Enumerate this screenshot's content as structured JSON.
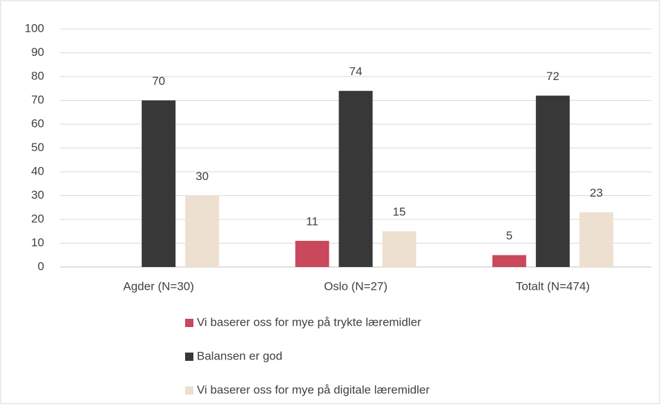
{
  "chart_data": {
    "type": "bar",
    "categories": [
      "Agder (N=30)",
      "Oslo (N=27)",
      "Totalt (N=474)"
    ],
    "series": [
      {
        "name": "Vi baserer oss for mye på trykte læremidler",
        "color": "#c9485b",
        "values": [
          null,
          11,
          5
        ]
      },
      {
        "name": "Balansen er god",
        "color": "#383838",
        "values": [
          70,
          74,
          72
        ]
      },
      {
        "name": "Vi baserer oss for mye på digitale læremidler",
        "color": "#ede0d0",
        "values": [
          30,
          15,
          23
        ]
      }
    ],
    "ylim": [
      0,
      100
    ],
    "yticks": [
      0,
      10,
      20,
      30,
      40,
      50,
      60,
      70,
      80,
      90,
      100
    ],
    "grid": true,
    "legend": "bottom"
  }
}
